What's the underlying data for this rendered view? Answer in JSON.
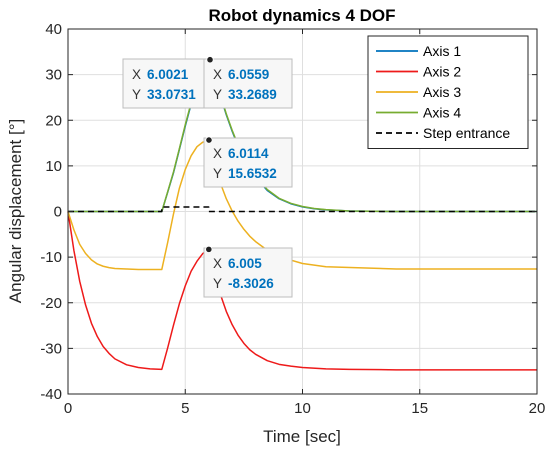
{
  "chart_data": {
    "type": "line",
    "title": "Robot dynamics 4 DOF",
    "xlabel": "Time [sec]",
    "ylabel": "Angular displacement [°]",
    "xlim": [
      0,
      20
    ],
    "ylim": [
      -40,
      40
    ],
    "xticks": [
      0,
      5,
      10,
      15,
      20
    ],
    "yticks": [
      -40,
      -30,
      -20,
      -10,
      0,
      10,
      20,
      30,
      40
    ],
    "grid": true,
    "legend_position": "top-right",
    "series": [
      {
        "name": "Axis  1",
        "color": "#0072BD",
        "style": "solid",
        "x": [
          0,
          4,
          4.25,
          4.5,
          4.75,
          5,
          5.25,
          5.5,
          5.75,
          6,
          6.25,
          6.5,
          6.75,
          7,
          7.25,
          7.5,
          7.75,
          8,
          8.5,
          9,
          9.5,
          10,
          10.5,
          11,
          12,
          14,
          20
        ],
        "y": [
          0,
          0,
          4.2,
          8.5,
          13.6,
          18.7,
          23.5,
          27.5,
          30.8,
          33.1,
          29.6,
          25.3,
          21.2,
          17.6,
          14.4,
          11.7,
          9.4,
          7.5,
          4.6,
          2.8,
          1.7,
          1.0,
          0.6,
          0.35,
          0.1,
          0,
          0
        ]
      },
      {
        "name": "Axis  2",
        "color": "#EE1A1A",
        "style": "solid",
        "x": [
          0,
          0.25,
          0.5,
          0.75,
          1,
          1.25,
          1.5,
          1.75,
          2,
          2.5,
          3,
          3.5,
          4,
          4.25,
          4.5,
          4.75,
          5,
          5.25,
          5.5,
          5.75,
          6,
          6.25,
          6.5,
          6.75,
          7,
          7.25,
          7.5,
          7.75,
          8,
          8.5,
          9,
          9.5,
          10,
          11,
          12,
          14,
          20
        ],
        "y": [
          0,
          -8.5,
          -15.3,
          -20.5,
          -24.5,
          -27.4,
          -29.6,
          -31.1,
          -32.3,
          -33.6,
          -34.2,
          -34.5,
          -34.6,
          -29.9,
          -24.9,
          -20.2,
          -16.3,
          -13.1,
          -10.9,
          -9.2,
          -8.3,
          -13.3,
          -18.2,
          -21.9,
          -24.8,
          -27.1,
          -28.9,
          -30.3,
          -31.3,
          -32.7,
          -33.5,
          -33.9,
          -34.2,
          -34.5,
          -34.6,
          -34.7,
          -34.7
        ]
      },
      {
        "name": "Axis  3",
        "color": "#EDB120",
        "style": "solid",
        "x": [
          0,
          0.25,
          0.5,
          0.75,
          1,
          1.25,
          1.5,
          1.75,
          2,
          2.5,
          3,
          3.5,
          4,
          4.25,
          4.5,
          4.75,
          5,
          5.25,
          5.5,
          5.75,
          6,
          6.25,
          6.5,
          6.75,
          7,
          7.25,
          7.5,
          7.75,
          8,
          8.5,
          9,
          10,
          11,
          14,
          20
        ],
        "y": [
          0,
          -4.0,
          -7.2,
          -9.2,
          -10.6,
          -11.5,
          -12.0,
          -12.3,
          -12.5,
          -12.6,
          -12.7,
          -12.7,
          -12.7,
          -6.8,
          -0.5,
          5.1,
          9.2,
          12.2,
          14.2,
          15.2,
          15.65,
          10.6,
          6.2,
          2.8,
          0.1,
          -2.1,
          -3.9,
          -5.4,
          -6.6,
          -8.5,
          -9.9,
          -11.4,
          -12.1,
          -12.6,
          -12.6
        ]
      },
      {
        "name": "Axis  4",
        "color": "#77AC30",
        "style": "solid",
        "x": [
          0,
          4,
          4.25,
          4.5,
          4.75,
          5,
          5.25,
          5.5,
          5.75,
          6.06,
          6.25,
          6.5,
          6.75,
          7,
          7.25,
          7.5,
          7.75,
          8,
          8.5,
          9,
          9.5,
          10,
          10.5,
          11,
          12,
          14,
          20
        ],
        "y": [
          0,
          0,
          4.3,
          8.7,
          13.8,
          19.0,
          23.8,
          27.8,
          31.0,
          33.27,
          29.8,
          25.5,
          21.4,
          17.8,
          14.6,
          11.9,
          9.6,
          7.7,
          4.8,
          2.9,
          1.8,
          1.1,
          0.65,
          0.4,
          0.1,
          0,
          0
        ]
      },
      {
        "name": "Step entrance",
        "color": "#000000",
        "style": "dashed",
        "x": [
          0,
          4,
          4,
          6,
          6,
          20
        ],
        "y": [
          0,
          0,
          1,
          1,
          0,
          0
        ]
      }
    ],
    "datatips": [
      {
        "key_x": "X",
        "value_x": "6.0021",
        "key_y": "Y",
        "value_y": "33.0731",
        "x": 6.0021,
        "y": 33.0731
      },
      {
        "key_x": "X",
        "value_x": "6.0559",
        "key_y": "Y",
        "value_y": "33.2689",
        "x": 6.0559,
        "y": 33.2689
      },
      {
        "key_x": "X",
        "value_x": "6.0114",
        "key_y": "Y",
        "value_y": "15.6532",
        "x": 6.0114,
        "y": 15.6532
      },
      {
        "key_x": "X",
        "value_x": "6.005",
        "key_y": "Y",
        "value_y": "-8.3026",
        "x": 6.005,
        "y": -8.3026
      }
    ]
  }
}
